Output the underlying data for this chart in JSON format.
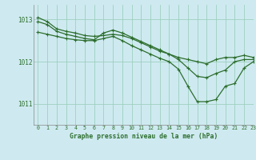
{
  "title": "Graphe pression niveau de la mer (hPa)",
  "bg_color": "#ceeaf0",
  "grid_color": "#9ecfbf",
  "line_color": "#2d6e2d",
  "xlim": [
    -0.5,
    23
  ],
  "ylim": [
    1010.5,
    1013.35
  ],
  "yticks": [
    1011,
    1012,
    1013
  ],
  "xticks": [
    0,
    1,
    2,
    3,
    4,
    5,
    6,
    7,
    8,
    9,
    10,
    11,
    12,
    13,
    14,
    15,
    16,
    17,
    18,
    19,
    20,
    21,
    22,
    23
  ],
  "series": [
    [
      1013.05,
      1012.95,
      1012.78,
      1012.72,
      1012.68,
      1012.62,
      1012.6,
      1012.62,
      1012.65,
      1012.62,
      1012.55,
      1012.45,
      1012.35,
      1012.25,
      1012.18,
      1012.1,
      1012.05,
      1012.0,
      1011.95,
      1012.05,
      1012.1,
      1012.1,
      1012.15,
      1012.1
    ],
    [
      1012.95,
      1012.88,
      1012.72,
      1012.65,
      1012.6,
      1012.55,
      1012.52,
      1012.68,
      1012.75,
      1012.68,
      1012.58,
      1012.48,
      1012.38,
      1012.28,
      1012.18,
      1012.05,
      1011.85,
      1011.65,
      1011.62,
      1011.72,
      1011.8,
      1012.0,
      1012.05,
      1012.05
    ],
    [
      1012.7,
      1012.65,
      1012.6,
      1012.55,
      1012.52,
      1012.5,
      1012.5,
      1012.55,
      1012.6,
      1012.5,
      1012.38,
      1012.28,
      1012.18,
      1012.08,
      1012.0,
      1011.82,
      1011.42,
      1011.05,
      1011.05,
      1011.1,
      1011.42,
      1011.48,
      1011.85,
      1012.0
    ]
  ]
}
